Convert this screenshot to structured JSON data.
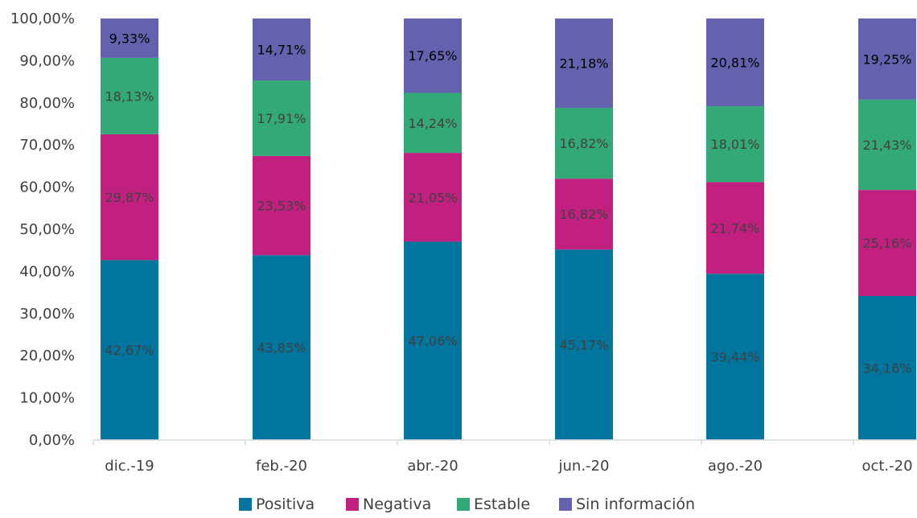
{
  "chart_data": {
    "type": "bar",
    "stacked": true,
    "categories": [
      "dic.-19",
      "feb.-20",
      "abr.-20",
      "jun.-20",
      "ago.-20",
      "oct.-20"
    ],
    "series": [
      {
        "name": "Positiva",
        "color": "#00759E",
        "values": [
          42.67,
          43.85,
          47.06,
          45.17,
          39.44,
          34.16
        ],
        "labels": [
          "42,67%",
          "43,85%",
          "47,06%",
          "45,17%",
          "39,44%",
          "34,16%"
        ],
        "label_color": "#404040"
      },
      {
        "name": "Negativa",
        "color": "#C22081",
        "values": [
          29.87,
          23.53,
          21.05,
          16.82,
          21.74,
          25.16
        ],
        "labels": [
          "29,87%",
          "23,53%",
          "21,05%",
          "16,82%",
          "21,74%",
          "25,16%"
        ],
        "label_color": "#404040"
      },
      {
        "name": "Estable",
        "color": "#33A977",
        "values": [
          18.13,
          17.91,
          14.24,
          16.82,
          18.01,
          21.43
        ],
        "labels": [
          "18,13%",
          "17,91%",
          "14,24%",
          "16,82%",
          "18,01%",
          "21,43%"
        ],
        "label_color": "#404040"
      },
      {
        "name": "Sin información",
        "color": "#6461AE",
        "values": [
          9.33,
          14.71,
          17.65,
          21.18,
          20.81,
          19.25
        ],
        "labels": [
          "9,33%",
          "14,71%",
          "17,65%",
          "21,18%",
          "20,81%",
          "19,25%"
        ],
        "label_color": "#000000"
      }
    ],
    "ylim": [
      0,
      100
    ],
    "y_ticks": [
      0,
      10,
      20,
      30,
      40,
      50,
      60,
      70,
      80,
      90,
      100
    ],
    "y_tick_labels": [
      "0,00%",
      "10,00%",
      "20,00%",
      "30,00%",
      "40,00%",
      "50,00%",
      "60,00%",
      "70,00%",
      "80,00%",
      "90,00%",
      "100,00%"
    ],
    "title": "",
    "xlabel": "",
    "ylabel": "",
    "grid": false,
    "legend_position": "bottom"
  }
}
